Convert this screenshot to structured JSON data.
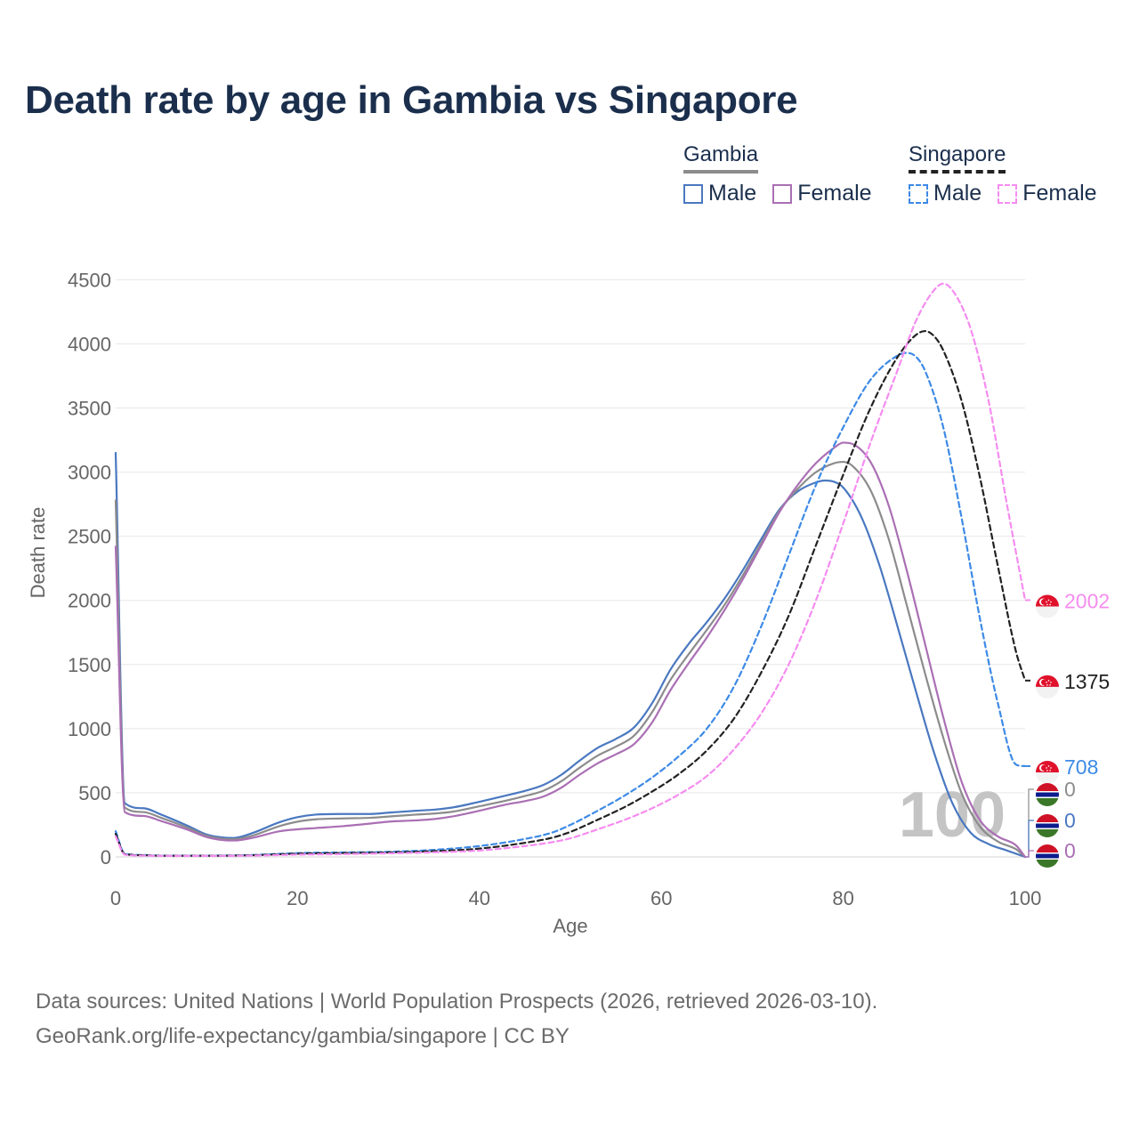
{
  "title": "Death rate by age in Gambia vs Singapore",
  "legend": {
    "gambia": {
      "title": "Gambia",
      "male": "Male",
      "female": "Female"
    },
    "singapore": {
      "title": "Singapore",
      "male": "Male",
      "female": "Female"
    }
  },
  "colors": {
    "gambia_male": "#4a78c0",
    "gambia_female": "#aa6fb4",
    "gambia_total": "#8c8c8c",
    "singapore_male": "#3d8ae6",
    "singapore_female": "#f58cf0",
    "singapore_total": "#222222"
  },
  "footer": {
    "line1": "Data sources: United Nations | World Population Prospects (2026, retrieved 2026-03-10).",
    "line2": "GeoRank.org/life-expectancy/gambia/singapore | CC BY"
  },
  "chart_data": {
    "type": "line",
    "xlabel": "Age",
    "ylabel": "Death rate",
    "xlim": [
      0,
      100
    ],
    "ylim": [
      0,
      4600
    ],
    "xticks": [
      0,
      20,
      40,
      60,
      80,
      100
    ],
    "yticks": [
      0,
      500,
      1000,
      1500,
      2000,
      2500,
      3000,
      3500,
      4000,
      4500
    ],
    "watermark": "100",
    "series": [
      {
        "id": "gambia_male",
        "name": "Gambia Male",
        "dashed": false,
        "points": [
          [
            0,
            3150
          ],
          [
            1,
            420
          ],
          [
            3,
            380
          ],
          [
            5,
            330
          ],
          [
            8,
            240
          ],
          [
            10,
            175
          ],
          [
            12,
            150
          ],
          [
            13,
            148
          ],
          [
            15,
            185
          ],
          [
            18,
            270
          ],
          [
            20,
            310
          ],
          [
            22,
            330
          ],
          [
            25,
            335
          ],
          [
            28,
            335
          ],
          [
            30,
            345
          ],
          [
            33,
            360
          ],
          [
            35,
            368
          ],
          [
            37,
            385
          ],
          [
            40,
            430
          ],
          [
            43,
            480
          ],
          [
            45,
            515
          ],
          [
            47,
            560
          ],
          [
            49,
            640
          ],
          [
            51,
            750
          ],
          [
            53,
            850
          ],
          [
            55,
            920
          ],
          [
            57,
            1010
          ],
          [
            59,
            1200
          ],
          [
            61,
            1460
          ],
          [
            63,
            1660
          ],
          [
            65,
            1830
          ],
          [
            67,
            2020
          ],
          [
            69,
            2240
          ],
          [
            71,
            2480
          ],
          [
            73,
            2710
          ],
          [
            75,
            2850
          ],
          [
            77,
            2920
          ],
          [
            78,
            2935
          ],
          [
            79,
            2925
          ],
          [
            80,
            2880
          ],
          [
            82,
            2650
          ],
          [
            84,
            2270
          ],
          [
            86,
            1790
          ],
          [
            88,
            1290
          ],
          [
            90,
            810
          ],
          [
            92,
            420
          ],
          [
            94,
            190
          ],
          [
            96,
            100
          ],
          [
            98,
            50
          ],
          [
            100,
            0
          ]
        ]
      },
      {
        "id": "gambia_total",
        "name": "Gambia",
        "dashed": false,
        "points": [
          [
            0,
            2780
          ],
          [
            1,
            385
          ],
          [
            3,
            350
          ],
          [
            5,
            305
          ],
          [
            8,
            225
          ],
          [
            10,
            165
          ],
          [
            12,
            140
          ],
          [
            13,
            138
          ],
          [
            15,
            165
          ],
          [
            18,
            240
          ],
          [
            20,
            275
          ],
          [
            22,
            293
          ],
          [
            25,
            300
          ],
          [
            28,
            305
          ],
          [
            30,
            315
          ],
          [
            33,
            330
          ],
          [
            35,
            338
          ],
          [
            37,
            352
          ],
          [
            40,
            395
          ],
          [
            43,
            440
          ],
          [
            45,
            475
          ],
          [
            47,
            515
          ],
          [
            49,
            590
          ],
          [
            51,
            695
          ],
          [
            53,
            790
          ],
          [
            55,
            860
          ],
          [
            57,
            945
          ],
          [
            59,
            1130
          ],
          [
            61,
            1380
          ],
          [
            63,
            1580
          ],
          [
            65,
            1770
          ],
          [
            67,
            1970
          ],
          [
            69,
            2200
          ],
          [
            71,
            2450
          ],
          [
            73,
            2700
          ],
          [
            75,
            2870
          ],
          [
            77,
            3000
          ],
          [
            79,
            3070
          ],
          [
            80,
            3080
          ],
          [
            81,
            3050
          ],
          [
            83,
            2860
          ],
          [
            85,
            2480
          ],
          [
            87,
            1960
          ],
          [
            89,
            1430
          ],
          [
            91,
            930
          ],
          [
            93,
            500
          ],
          [
            95,
            240
          ],
          [
            97,
            120
          ],
          [
            99,
            60
          ],
          [
            100,
            0
          ]
        ]
      },
      {
        "id": "gambia_female",
        "name": "Gambia Female",
        "dashed": false,
        "points": [
          [
            0,
            2420
          ],
          [
            1,
            350
          ],
          [
            3,
            320
          ],
          [
            5,
            280
          ],
          [
            8,
            210
          ],
          [
            10,
            155
          ],
          [
            12,
            130
          ],
          [
            13,
            128
          ],
          [
            15,
            148
          ],
          [
            18,
            200
          ],
          [
            20,
            215
          ],
          [
            22,
            225
          ],
          [
            25,
            240
          ],
          [
            28,
            260
          ],
          [
            30,
            275
          ],
          [
            33,
            285
          ],
          [
            35,
            295
          ],
          [
            37,
            315
          ],
          [
            40,
            360
          ],
          [
            43,
            410
          ],
          [
            45,
            435
          ],
          [
            47,
            470
          ],
          [
            49,
            540
          ],
          [
            51,
            640
          ],
          [
            53,
            730
          ],
          [
            55,
            800
          ],
          [
            57,
            880
          ],
          [
            59,
            1050
          ],
          [
            61,
            1300
          ],
          [
            63,
            1510
          ],
          [
            65,
            1710
          ],
          [
            67,
            1930
          ],
          [
            69,
            2170
          ],
          [
            71,
            2430
          ],
          [
            73,
            2690
          ],
          [
            75,
            2900
          ],
          [
            77,
            3070
          ],
          [
            79,
            3190
          ],
          [
            80,
            3230
          ],
          [
            81,
            3220
          ],
          [
            83,
            3080
          ],
          [
            85,
            2740
          ],
          [
            87,
            2230
          ],
          [
            89,
            1660
          ],
          [
            91,
            1090
          ],
          [
            93,
            590
          ],
          [
            95,
            290
          ],
          [
            97,
            160
          ],
          [
            99,
            90
          ],
          [
            100,
            0
          ]
        ]
      },
      {
        "id": "singapore_male",
        "name": "Singapore Male",
        "dashed": true,
        "points": [
          [
            0,
            200
          ],
          [
            1,
            25
          ],
          [
            3,
            15
          ],
          [
            5,
            10
          ],
          [
            10,
            10
          ],
          [
            15,
            15
          ],
          [
            20,
            30
          ],
          [
            25,
            35
          ],
          [
            30,
            40
          ],
          [
            35,
            55
          ],
          [
            40,
            85
          ],
          [
            45,
            140
          ],
          [
            48,
            190
          ],
          [
            50,
            250
          ],
          [
            53,
            360
          ],
          [
            56,
            480
          ],
          [
            59,
            620
          ],
          [
            62,
            790
          ],
          [
            65,
            1000
          ],
          [
            68,
            1330
          ],
          [
            71,
            1800
          ],
          [
            74,
            2350
          ],
          [
            77,
            2900
          ],
          [
            80,
            3350
          ],
          [
            83,
            3720
          ],
          [
            86,
            3910
          ],
          [
            87,
            3930
          ],
          [
            88,
            3900
          ],
          [
            89,
            3790
          ],
          [
            91,
            3350
          ],
          [
            93,
            2650
          ],
          [
            95,
            1870
          ],
          [
            97,
            1200
          ],
          [
            99,
            720
          ],
          [
            100,
            708
          ]
        ]
      },
      {
        "id": "singapore_total",
        "name": "Singapore",
        "dashed": true,
        "points": [
          [
            0,
            180
          ],
          [
            1,
            22
          ],
          [
            3,
            13
          ],
          [
            5,
            9
          ],
          [
            10,
            9
          ],
          [
            15,
            13
          ],
          [
            20,
            25
          ],
          [
            25,
            30
          ],
          [
            30,
            35
          ],
          [
            35,
            45
          ],
          [
            40,
            65
          ],
          [
            45,
            110
          ],
          [
            48,
            150
          ],
          [
            50,
            195
          ],
          [
            53,
            290
          ],
          [
            56,
            390
          ],
          [
            59,
            510
          ],
          [
            62,
            650
          ],
          [
            65,
            830
          ],
          [
            68,
            1080
          ],
          [
            71,
            1440
          ],
          [
            74,
            1880
          ],
          [
            77,
            2430
          ],
          [
            80,
            2980
          ],
          [
            83,
            3500
          ],
          [
            86,
            3900
          ],
          [
            88,
            4070
          ],
          [
            89,
            4100
          ],
          [
            90,
            4060
          ],
          [
            91,
            3950
          ],
          [
            93,
            3560
          ],
          [
            95,
            2970
          ],
          [
            97,
            2270
          ],
          [
            99,
            1600
          ],
          [
            100,
            1375
          ]
        ]
      },
      {
        "id": "singapore_female",
        "name": "Singapore Female",
        "dashed": true,
        "points": [
          [
            0,
            160
          ],
          [
            1,
            18
          ],
          [
            3,
            10
          ],
          [
            5,
            8
          ],
          [
            10,
            8
          ],
          [
            15,
            10
          ],
          [
            20,
            18
          ],
          [
            25,
            22
          ],
          [
            30,
            28
          ],
          [
            35,
            36
          ],
          [
            40,
            50
          ],
          [
            45,
            85
          ],
          [
            48,
            115
          ],
          [
            50,
            145
          ],
          [
            53,
            215
          ],
          [
            56,
            290
          ],
          [
            59,
            380
          ],
          [
            62,
            490
          ],
          [
            65,
            630
          ],
          [
            68,
            840
          ],
          [
            71,
            1120
          ],
          [
            74,
            1500
          ],
          [
            77,
            2000
          ],
          [
            80,
            2600
          ],
          [
            83,
            3230
          ],
          [
            86,
            3800
          ],
          [
            88,
            4180
          ],
          [
            90,
            4420
          ],
          [
            91,
            4470
          ],
          [
            92,
            4420
          ],
          [
            94,
            4120
          ],
          [
            96,
            3550
          ],
          [
            98,
            2750
          ],
          [
            100,
            2002
          ]
        ]
      }
    ],
    "end_labels": [
      {
        "series": "singapore_female",
        "country": "Singapore",
        "value": "2002",
        "y": 2002
      },
      {
        "series": "singapore_total",
        "country": "Singapore",
        "value": "1375",
        "y": 1375
      },
      {
        "series": "singapore_male",
        "country": "Singapore",
        "value": "708",
        "y": 708
      },
      {
        "series": "gambia_total",
        "country": "Gambia",
        "value": "0",
        "y": 0
      },
      {
        "series": "gambia_male",
        "country": "Gambia",
        "value": "0",
        "y": 0
      },
      {
        "series": "gambia_female",
        "country": "Gambia",
        "value": "0",
        "y": 0
      }
    ]
  }
}
